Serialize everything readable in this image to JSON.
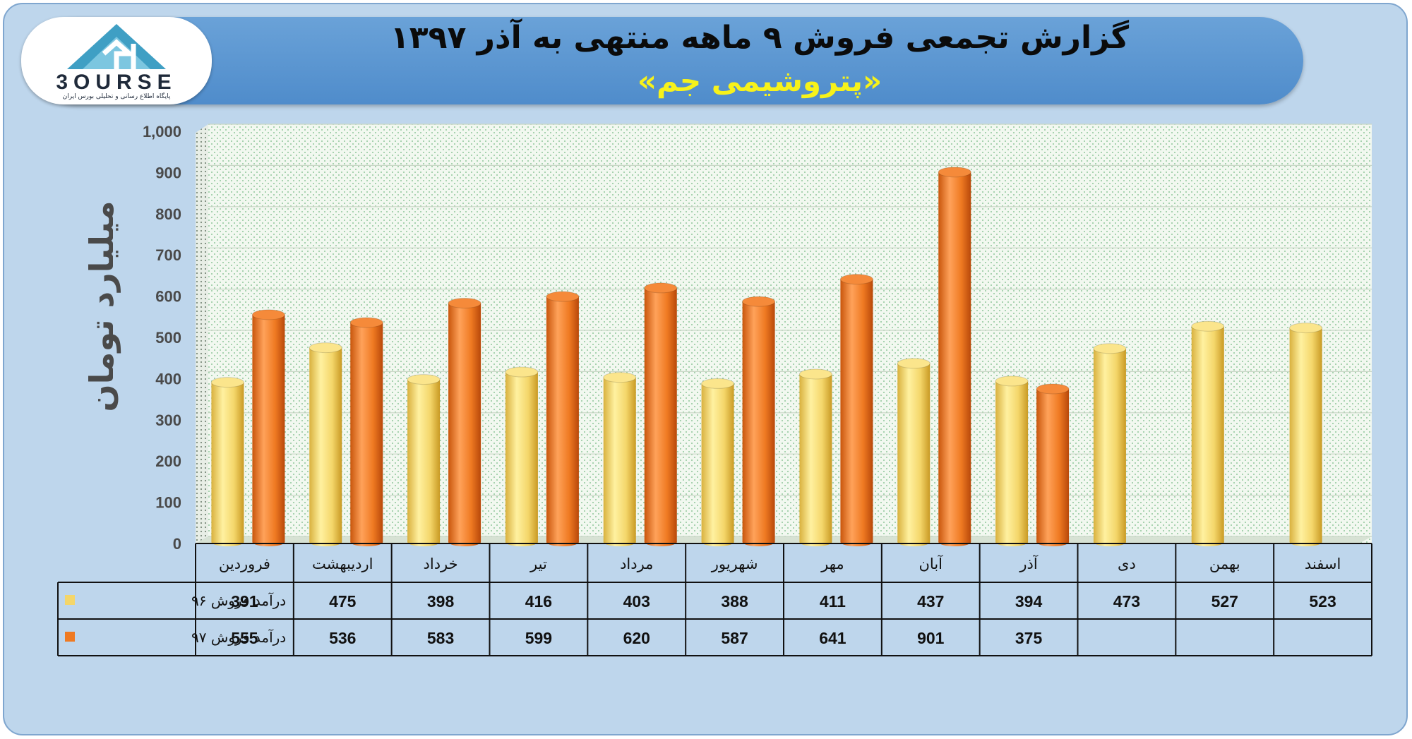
{
  "header": {
    "title": "گزارش تجمعی فروش ۹ ماهه منتهی به آذر ۱۳۹۷",
    "subtitle": "«پتروشیمی جم»"
  },
  "logo": {
    "wordmark": "3OURSE",
    "tagline": "پایگاه اطلاع رسانی و تحلیلی بورس ایران"
  },
  "colors": {
    "frame": "#bed6ec",
    "banner": "#5b96d1",
    "series_96": "#f4d66a",
    "series_97": "#ef7a22",
    "plot_bg": "#eef6ee"
  },
  "chart_data": {
    "type": "bar",
    "title": "گزارش تجمعی فروش ۹ ماهه منتهی به آذر ۱۳۹۷",
    "subtitle": "«پتروشیمی جم»",
    "ylabel": "میلیارد تومان",
    "xlabel": "",
    "ylim": [
      0,
      1000
    ],
    "yticks": [
      "0",
      "100",
      "200",
      "300",
      "400",
      "500",
      "600",
      "700",
      "800",
      "900",
      "1,000"
    ],
    "grid": true,
    "legend": "data-table-left",
    "categories": [
      "فروردین",
      "اردیبهشت",
      "خرداد",
      "تیر",
      "مرداد",
      "شهریور",
      "مهر",
      "آبان",
      "آذر",
      "دی",
      "بهمن",
      "اسفند"
    ],
    "series": [
      {
        "name": "درآمد فروش ۹۶",
        "color": "#f4d66a",
        "values": [
          391,
          475,
          398,
          416,
          403,
          388,
          411,
          437,
          394,
          473,
          527,
          523
        ]
      },
      {
        "name": "درآمد فروش ۹۷",
        "color": "#ef7a22",
        "values": [
          555,
          536,
          583,
          599,
          620,
          587,
          641,
          901,
          375,
          null,
          null,
          null
        ]
      }
    ]
  }
}
